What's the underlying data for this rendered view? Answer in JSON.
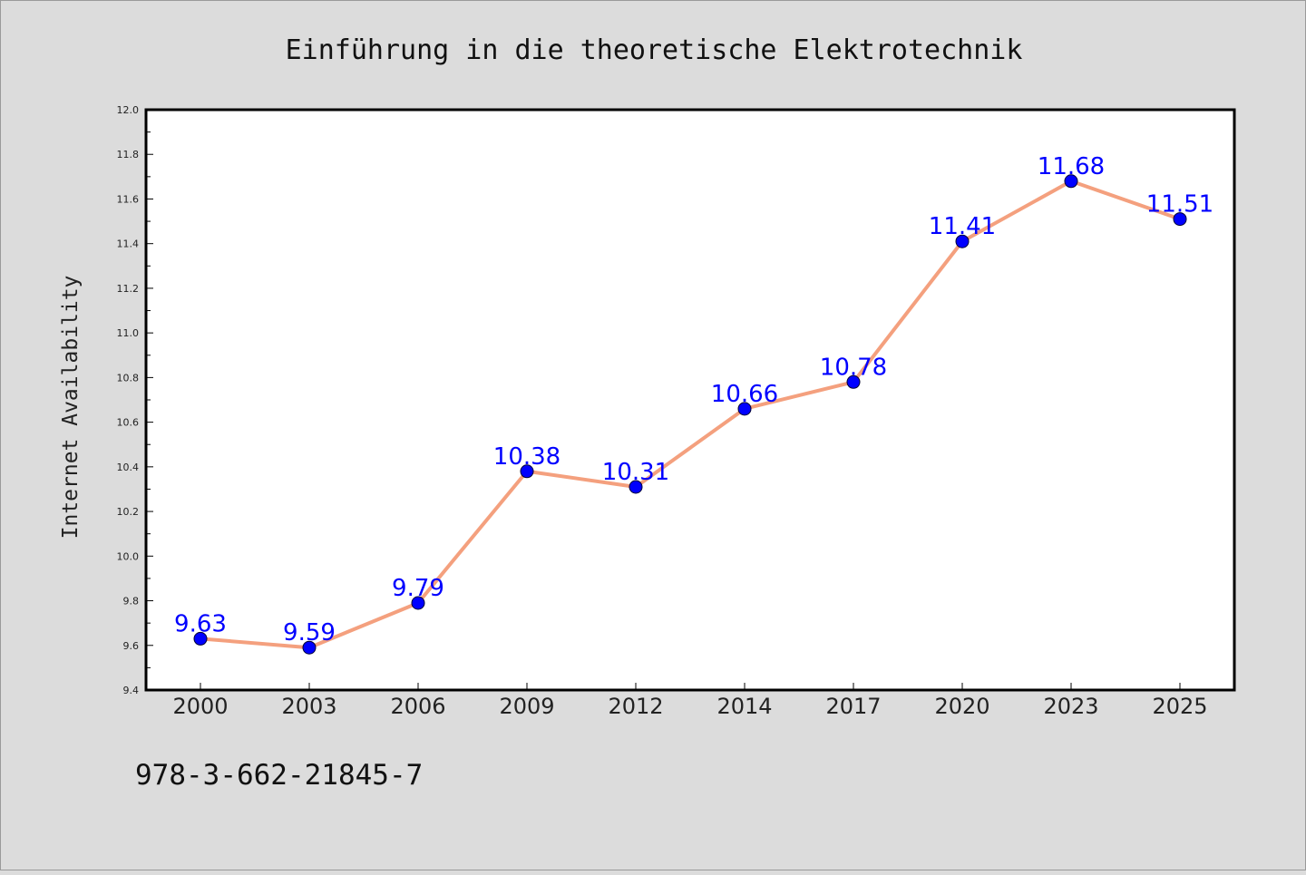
{
  "chart_data": {
    "type": "line",
    "title": "Einführung in die theoretische Elektrotechnik",
    "xlabel": "",
    "ylabel": "Internet Availability",
    "categories": [
      "2000",
      "2003",
      "2006",
      "2009",
      "2012",
      "2014",
      "2017",
      "2020",
      "2023",
      "2025"
    ],
    "series": [
      {
        "values": [
          9.63,
          9.59,
          9.79,
          10.38,
          10.31,
          10.66,
          10.78,
          11.41,
          11.68,
          11.51
        ],
        "line_color": "#f4a07e",
        "marker_color": "#0000ff"
      }
    ],
    "data_labels": [
      "9.63",
      "9.59",
      "9.79",
      "10.38",
      "10.31",
      "10.66",
      "10.78",
      "11.41",
      "11.68",
      "11.51"
    ],
    "data_label_color": "#0000ff",
    "ylim": [
      9.4,
      12.0
    ],
    "yticks": [
      "9.4",
      "9.6",
      "9.8",
      "10.0",
      "10.2",
      "10.4",
      "10.6",
      "10.8",
      "11.0",
      "11.2",
      "11.4",
      "11.6",
      "11.8",
      "12.0"
    ],
    "grid": false,
    "legend": "none"
  },
  "footer": {
    "isbn": "978-3-662-21845-7"
  }
}
